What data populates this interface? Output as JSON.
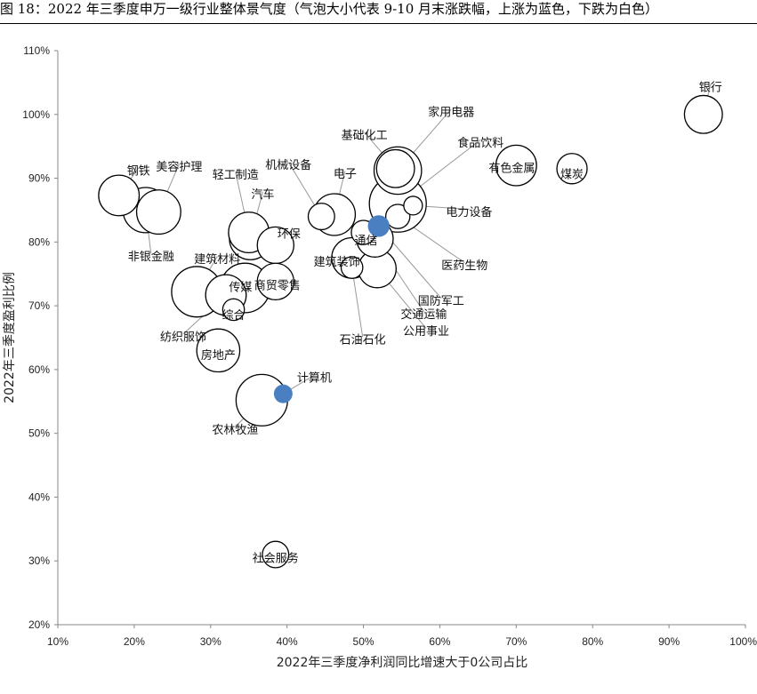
{
  "figure": {
    "title": "图 18：2022 年三季度申万一级行业整体景气度（气泡大小代表 9-10 月末涨跌幅，上涨为蓝色，下跌为白色）"
  },
  "chart_data": {
    "type": "scatter",
    "subtype": "bubble",
    "xlabel": "2022年三季度净利润同比增速大于0公司占比",
    "ylabel": "2022年三季度盈利比例",
    "xlim": [
      0.1,
      1.0
    ],
    "ylim": [
      0.2,
      1.1
    ],
    "x_ticks": [
      "10%",
      "20%",
      "30%",
      "40%",
      "50%",
      "60%",
      "70%",
      "80%",
      "90%",
      "100%"
    ],
    "y_ticks": [
      "20%",
      "30%",
      "40%",
      "50%",
      "60%",
      "70%",
      "80%",
      "90%",
      "100%",
      "110%"
    ],
    "grid": false,
    "legend": "none",
    "colors": {
      "rise": "#4a7fc1",
      "fall": "#ffffff",
      "outline": "#000000",
      "leader": "#999999"
    },
    "points": [
      {
        "label": "银行",
        "x": 0.945,
        "y": 1.0,
        "size": 12,
        "fill": "fall",
        "dx": 8,
        "dy": -30
      },
      {
        "label": "煤炭",
        "x": 0.773,
        "y": 0.915,
        "size": 7,
        "fill": "fall",
        "dx": 0,
        "dy": 7
      },
      {
        "label": "有色金属",
        "x": 0.7,
        "y": 0.92,
        "size": 14,
        "fill": "fall",
        "dx": -5,
        "dy": 4
      },
      {
        "label": "家用电器",
        "x": 0.545,
        "y": 0.912,
        "size": 20,
        "fill": "fall",
        "dx": 60,
        "dy": -65
      },
      {
        "label": "基础化工",
        "x": 0.542,
        "y": 0.915,
        "size": 12,
        "fill": "fall",
        "dx": -35,
        "dy": -37
      },
      {
        "label": "食品饮料",
        "x": 0.545,
        "y": 0.86,
        "size": 30,
        "fill": "fall",
        "dx": 93,
        "dy": -68
      },
      {
        "label": "电力设备",
        "x": 0.565,
        "y": 0.857,
        "size": 2,
        "fill": "fall",
        "dx": 63,
        "dy": 8
      },
      {
        "label": "医药生物",
        "x": 0.545,
        "y": 0.84,
        "size": 4,
        "fill": "fall",
        "dx": 75,
        "dy": 56
      },
      {
        "label": "国防军工",
        "x": 0.52,
        "y": 0.825,
        "size": 3,
        "fill": "rise",
        "dx": 70,
        "dy": 85
      },
      {
        "label": "通信",
        "x": 0.5,
        "y": 0.815,
        "size": 4,
        "fill": "fall",
        "dx": 3,
        "dy": 10
      },
      {
        "label": "交通运输",
        "x": 0.515,
        "y": 0.805,
        "size": 11,
        "fill": "fall",
        "dx": 55,
        "dy": 86
      },
      {
        "label": "电子",
        "x": 0.462,
        "y": 0.843,
        "size": 15,
        "fill": "fall",
        "dx": 12,
        "dy": -45
      },
      {
        "label": "机械设备",
        "x": 0.445,
        "y": 0.84,
        "size": 5,
        "fill": "fall",
        "dx": -37,
        "dy": -57
      },
      {
        "label": "建筑装饰",
        "x": 0.485,
        "y": 0.775,
        "size": 14,
        "fill": "fall",
        "dx": -17,
        "dy": 5
      },
      {
        "label": "公用事业",
        "x": 0.518,
        "y": 0.758,
        "size": 12,
        "fill": "fall",
        "dx": 55,
        "dy": 71
      },
      {
        "label": "石油石化",
        "x": 0.485,
        "y": 0.76,
        "size": 3,
        "fill": "fall",
        "dx": 12,
        "dy": 82
      },
      {
        "label": "钢铁",
        "x": 0.18,
        "y": 0.873,
        "size": 14,
        "fill": "fall",
        "dx": 22,
        "dy": -27
      },
      {
        "label": "美容护理",
        "x": 0.232,
        "y": 0.847,
        "size": 17,
        "fill": "fall",
        "dx": 23,
        "dy": -50
      },
      {
        "label": "非银金融",
        "x": 0.215,
        "y": 0.85,
        "size": 18,
        "fill": "fall",
        "dx": 6,
        "dy": 53
      },
      {
        "label": "轻工制造",
        "x": 0.35,
        "y": 0.815,
        "size": 14,
        "fill": "fall",
        "dx": -15,
        "dy": -64
      },
      {
        "label": "汽车",
        "x": 0.352,
        "y": 0.805,
        "size": 15,
        "fill": "fall",
        "dx": 14,
        "dy": -49
      },
      {
        "label": "环保",
        "x": 0.385,
        "y": 0.795,
        "size": 11,
        "fill": "fall",
        "dx": 15,
        "dy": -12
      },
      {
        "label": "建筑材料",
        "x": 0.282,
        "y": 0.722,
        "size": 23,
        "fill": "fall",
        "dx": 23,
        "dy": -36
      },
      {
        "label": "传媒",
        "x": 0.345,
        "y": 0.728,
        "size": 22,
        "fill": "fall",
        "dx": -5,
        "dy": 0
      },
      {
        "label": "商贸零售",
        "x": 0.385,
        "y": 0.738,
        "size": 11,
        "fill": "fall",
        "dx": 2,
        "dy": 5
      },
      {
        "label": "纺织服饰",
        "x": 0.32,
        "y": 0.717,
        "size": 14,
        "fill": "fall",
        "dx": -48,
        "dy": 48
      },
      {
        "label": "综合",
        "x": 0.33,
        "y": 0.694,
        "size": 3,
        "fill": "fall",
        "dx": 0,
        "dy": 7
      },
      {
        "label": "房地产",
        "x": 0.31,
        "y": 0.63,
        "size": 16,
        "fill": "fall",
        "dx": 0,
        "dy": 6
      },
      {
        "label": "计算机",
        "x": 0.395,
        "y": 0.562,
        "size": 2,
        "fill": "rise",
        "dx": 35,
        "dy": -17
      },
      {
        "label": "农林牧渔",
        "x": 0.367,
        "y": 0.552,
        "size": 24,
        "fill": "fall",
        "dx": -30,
        "dy": 34
      },
      {
        "label": "社会服务",
        "x": 0.385,
        "y": 0.31,
        "size": 5,
        "fill": "fall",
        "dx": 0,
        "dy": 5
      }
    ]
  }
}
